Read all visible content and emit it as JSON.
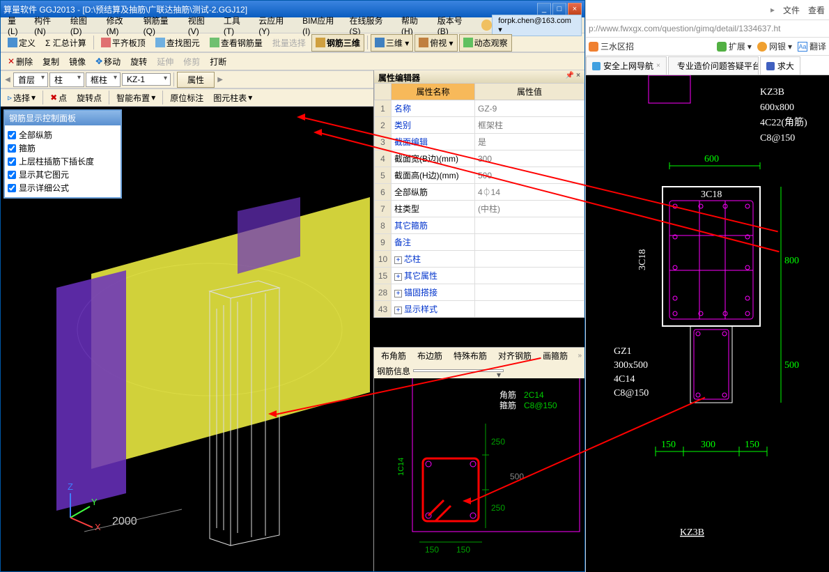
{
  "window": {
    "title": "算量软件 GGJ2013 - [D:\\预结算及抽筋\\广联达抽筋\\测试-2.GGJ12]",
    "min": "_",
    "max": "□",
    "close": "×"
  },
  "menu": {
    "items": [
      "量(L)",
      "构件(N)",
      "绘图(D)",
      "修改(M)",
      "钢筋量(Q)",
      "视图(V)",
      "工具(T)",
      "云应用(Y)",
      "BIM应用(I)",
      "在线服务(S)",
      "帮助(H)",
      "版本号(B)"
    ],
    "email": "forpk.chen@163.com ▾"
  },
  "toolbar1": {
    "define": "定义",
    "sum": "Σ 汇总计算",
    "slab": "平齐板顶",
    "findPic": "查找图元",
    "viewRebar": "查看钢筋量",
    "batchSel": "批量选择",
    "rebar3d": "钢筋三维",
    "threeD": "三维 ▾",
    "lookAt": "俯视 ▾",
    "dynView": "动态观察"
  },
  "toolbar2": {
    "del": "删除",
    "copy": "复制",
    "mirror": "镜像",
    "move": "移动",
    "rotate": "旋转",
    "extend": "延伸",
    "trim": "修剪",
    "break": "打断"
  },
  "toolbar3": {
    "floor": "首层",
    "cat": "柱",
    "type": "框柱",
    "elem": "KZ-1",
    "attr": "属性"
  },
  "toolbar4": {
    "select": "选择",
    "point": "点",
    "rotPoint": "旋转点",
    "smartPlace": "智能布置",
    "origAnnot": "原位标注",
    "elemTable": "图元柱表"
  },
  "rebarPanel": {
    "title": "钢筋显示控制面板",
    "checks": [
      "全部纵筋",
      "箍筋",
      "上层柱插筋下插长度",
      "显示其它图元",
      "显示详细公式"
    ]
  },
  "propEditor": {
    "title": "属性编辑器",
    "nameHeader": "属性名称",
    "valHeader": "属性值",
    "rows": [
      {
        "n": "1",
        "name": "名称",
        "val": "GZ-9",
        "link": true
      },
      {
        "n": "2",
        "name": "类别",
        "val": "框架柱",
        "link": true
      },
      {
        "n": "3",
        "name": "截面编辑",
        "val": "是",
        "link": true
      },
      {
        "n": "4",
        "name": "截面宽(B边)(mm)",
        "val": "300"
      },
      {
        "n": "5",
        "name": "截面高(H边)(mm)",
        "val": "500"
      },
      {
        "n": "6",
        "name": "全部纵筋",
        "val": "4⏀14"
      },
      {
        "n": "7",
        "name": "柱类型",
        "val": "(中柱)"
      },
      {
        "n": "8",
        "name": "其它箍筋",
        "val": "",
        "link": true
      },
      {
        "n": "9",
        "name": "备注",
        "val": "",
        "link": true
      },
      {
        "n": "10",
        "name": "芯柱",
        "val": "",
        "expand": true,
        "link": true
      },
      {
        "n": "15",
        "name": "其它属性",
        "val": "",
        "expand": true,
        "link": true
      },
      {
        "n": "28",
        "name": "锚固搭接",
        "val": "",
        "expand": true,
        "link": true
      },
      {
        "n": "43",
        "name": "显示样式",
        "val": "",
        "expand": true,
        "link": true
      }
    ]
  },
  "sectionPanel": {
    "tabs": [
      "布角筋",
      "布边筋",
      "特殊布筋",
      "对齐钢筋",
      "画箍筋"
    ],
    "infoLabel": "钢筋信息",
    "labels": {
      "corner": "角筋",
      "cornerVal": "2C14",
      "stirrup": "箍筋",
      "stirrupVal": "C8@150",
      "h": "1C14",
      "d250a": "250",
      "d250b": "250",
      "d500": "500",
      "d150a": "150",
      "d150b": "150"
    }
  },
  "viewport": {
    "dim2000": "2000",
    "axisZ": "Z",
    "axisY": "Y",
    "axisX": "X"
  },
  "browser": {
    "topMenu": [
      "文件",
      "查看"
    ],
    "url": "p://www.fwxgx.com/question/gimq/detail/1334637.ht",
    "favs": [
      {
        "label": "三水区招",
        "color": "#f08030"
      },
      {
        "label": "扩展",
        "color": "#52b043",
        "suffix": " ▾"
      },
      {
        "label": "网银",
        "color": "#f0a030",
        "suffix": " ▾"
      },
      {
        "label": "翻译",
        "color": "#3080e0"
      }
    ],
    "tabs": [
      {
        "label": "安全上网导航"
      },
      {
        "label": "专业造价问题答疑平台-广联"
      },
      {
        "label": "求大",
        "active": true
      }
    ],
    "cad": {
      "kz3b": "KZ3B",
      "dim600x800": "600x800",
      "corner4c22": "4C22(角筋)",
      "stirrup": "C8@150",
      "d600": "600",
      "d800": "800",
      "t3c18": "3C18",
      "l3c18": "3C18",
      "gz1": "GZ1",
      "gz1dim": "300x500",
      "gz1corner": "4C14",
      "gz1stirrup": "C8@150",
      "d500": "500",
      "d150a": "150",
      "d300": "300",
      "d150b": "150",
      "kz3b_bottom": "KZ3B"
    }
  },
  "colors": {
    "titlebar": "#0a5dc0",
    "menubg": "#ece9d8",
    "toolbg": "#f7f0da",
    "propHeaderOrange": "#f7b95a",
    "link": "#0033cc",
    "cadGreen": "#00ff00",
    "cadMagenta": "#ff00ff",
    "cadWhite": "#ffffff",
    "cadRed": "#ff0000"
  }
}
